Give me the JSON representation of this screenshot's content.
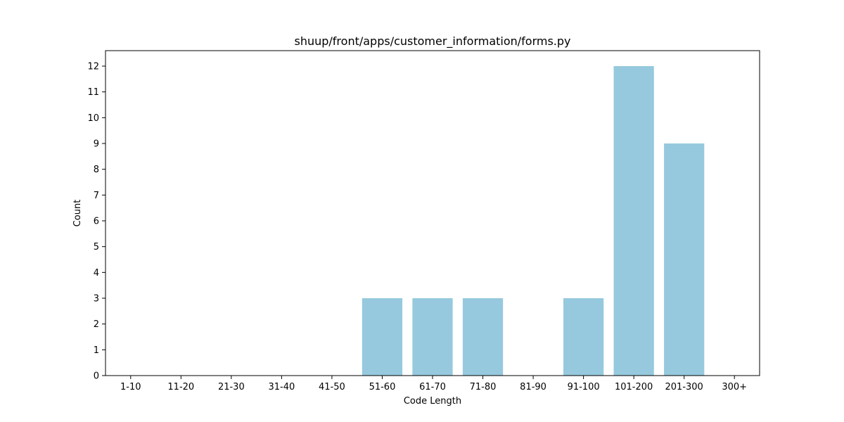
{
  "chart_data": {
    "type": "bar",
    "title": "shuup/front/apps/customer_information/forms.py",
    "xlabel": "Code Length",
    "ylabel": "Count",
    "categories": [
      "1-10",
      "11-20",
      "21-30",
      "31-40",
      "41-50",
      "51-60",
      "61-70",
      "71-80",
      "81-90",
      "91-100",
      "101-200",
      "201-300",
      "300+"
    ],
    "values": [
      0,
      0,
      0,
      0,
      0,
      3,
      3,
      3,
      0,
      3,
      12,
      9,
      0
    ],
    "yticks": [
      0,
      1,
      2,
      3,
      4,
      5,
      6,
      7,
      8,
      9,
      10,
      11,
      12
    ],
    "ylim": [
      0,
      12.6
    ],
    "bar_color": "#96c9dd",
    "grid": false,
    "legend": "none"
  }
}
